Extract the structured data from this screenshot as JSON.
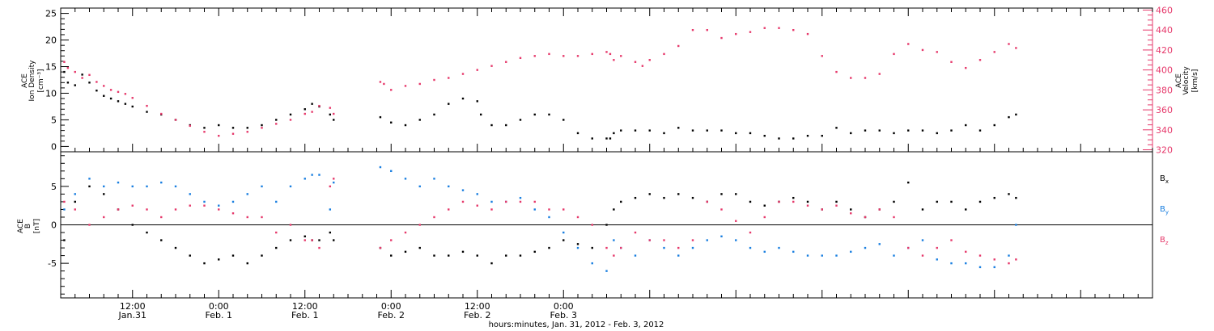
{
  "colors": {
    "black": "#000000",
    "pink": "#e6396b",
    "blue": "#1a7fe0"
  },
  "chart_data": [
    {
      "type": "scatter",
      "panel": "top",
      "ylabel_left": [
        "ACE",
        "Ion Density",
        "[cm⁻³]"
      ],
      "ylabel_right": [
        "ACE",
        "Velocity",
        "[km/s]"
      ],
      "ylim_left": [
        -1,
        26
      ],
      "yticks_left": [
        "25",
        "20",
        "15",
        "10",
        "5",
        "0"
      ],
      "ylim_right": [
        318,
        462
      ],
      "yticks_right": [
        "460",
        "440",
        "420",
        "400",
        "380",
        "360",
        "340",
        "320"
      ],
      "series": [
        {
          "key": "density",
          "color": "#000000",
          "axis": "left",
          "x": [
            -9.5,
            -9,
            -8,
            -7,
            -6,
            -5,
            -4,
            -3,
            -2,
            -1,
            0,
            2,
            4,
            6,
            8,
            10,
            12,
            14,
            16,
            18,
            20,
            22,
            24,
            25,
            26,
            27.5,
            28,
            34.5,
            36,
            38,
            40,
            42,
            44,
            46,
            48,
            48.5,
            50,
            52,
            54,
            56,
            58,
            60,
            62,
            64,
            66,
            66.5,
            67,
            68,
            70,
            72,
            74,
            76,
            78,
            80,
            82,
            84,
            86,
            88,
            90,
            92,
            94,
            96,
            98,
            100,
            102,
            104,
            106,
            108,
            110,
            112,
            114,
            116,
            118,
            120,
            122,
            123
          ],
          "y": [
            14,
            12,
            11.5,
            13.5,
            12,
            10.5,
            9.5,
            9,
            8.5,
            8,
            7.5,
            6.5,
            6,
            5,
            4,
            3.5,
            4,
            3.5,
            3.5,
            4,
            5,
            6,
            7,
            8,
            7.5,
            6,
            5,
            5.5,
            4.5,
            4,
            5,
            6,
            8,
            9,
            8.5,
            6,
            4,
            4,
            5,
            6,
            6,
            5,
            2.5,
            1.5,
            1.5,
            1.5,
            2.5,
            3,
            3,
            3,
            2.5,
            3.5,
            3,
            3,
            3,
            2.5,
            2.5,
            2,
            1.5,
            1.5,
            2,
            2,
            3.5,
            2.5,
            3,
            3,
            2.5,
            3,
            3,
            2.5,
            3,
            4,
            3,
            4,
            5.5,
            6
          ]
        },
        {
          "key": "velocity",
          "color": "#e6396b",
          "axis": "right",
          "x": [
            -9.5,
            -9,
            -8,
            -7,
            -6,
            -5,
            -4,
            -3,
            -2,
            -1,
            0,
            2,
            4,
            6,
            8,
            10,
            12,
            14,
            16,
            18,
            20,
            22,
            24,
            25,
            26,
            27.5,
            28,
            34.5,
            35,
            36,
            38,
            40,
            42,
            44,
            46,
            48,
            50,
            52,
            54,
            56,
            58,
            60,
            62,
            64,
            66,
            66.5,
            67,
            68,
            70,
            71,
            72,
            74,
            76,
            78,
            80,
            82,
            84,
            86,
            88,
            90,
            92,
            94,
            96,
            98,
            100,
            102,
            104,
            106,
            108,
            110,
            112,
            114,
            116,
            118,
            120,
            122,
            123
          ],
          "y": [
            408,
            402,
            398,
            392,
            395,
            388,
            384,
            380,
            378,
            376,
            372,
            364,
            356,
            350,
            344,
            338,
            334,
            336,
            338,
            342,
            346,
            350,
            356,
            358,
            364,
            362,
            356,
            388,
            386,
            380,
            384,
            386,
            390,
            392,
            396,
            400,
            404,
            408,
            412,
            414,
            416,
            414,
            414,
            416,
            418,
            416,
            410,
            414,
            408,
            404,
            410,
            416,
            424,
            440,
            440,
            432,
            436,
            438,
            442,
            442,
            440,
            436,
            414,
            398,
            392,
            392,
            396,
            416,
            426,
            420,
            418,
            408,
            402,
            410,
            418,
            426,
            422
          ]
        }
      ]
    },
    {
      "type": "scatter",
      "panel": "bottom",
      "ylabel_left": [
        "ACE",
        "B",
        "[nT]"
      ],
      "ylim": [
        -9.5,
        9.5
      ],
      "yticks_left": [
        "5",
        "0",
        "-5"
      ],
      "zero_line": true,
      "legend": [
        "Bx",
        "By",
        "Bz"
      ],
      "series": [
        {
          "key": "bx",
          "color": "#000000",
          "x": [
            -9.5,
            -8,
            -6,
            -4,
            -2,
            0,
            2,
            4,
            6,
            8,
            10,
            12,
            14,
            16,
            18,
            20,
            22,
            24,
            25,
            26,
            27.5,
            28,
            34.5,
            36,
            38,
            40,
            42,
            44,
            46,
            48,
            50,
            52,
            54,
            56,
            58,
            60,
            62,
            64,
            66,
            67,
            68,
            70,
            72,
            74,
            76,
            78,
            80,
            82,
            84,
            86,
            88,
            90,
            92,
            94,
            96,
            98,
            100,
            102,
            104,
            106,
            108,
            110,
            112,
            114,
            116,
            118,
            120,
            122,
            123
          ],
          "y": [
            -2,
            3,
            5,
            4,
            2,
            0,
            -1,
            -2,
            -3,
            -4,
            -5,
            -4.5,
            -4,
            -5,
            -4,
            -3,
            -2,
            -1.5,
            -2,
            -2,
            -1,
            -2,
            -3,
            -4,
            -3.5,
            -3,
            -4,
            -4,
            -3.5,
            -4,
            -5,
            -4,
            -4,
            -3.5,
            -3,
            -2,
            -2.5,
            -3,
            0,
            2,
            3,
            3.5,
            4,
            3.5,
            4,
            3.5,
            3,
            4,
            4,
            3,
            2.5,
            3,
            3.5,
            3,
            2,
            3,
            2,
            1,
            2,
            3,
            5.5,
            2,
            3,
            3,
            2,
            3,
            3.5,
            4,
            3.5
          ]
        },
        {
          "key": "by",
          "color": "#1a7fe0",
          "x": [
            -9.5,
            -8,
            -6,
            -4,
            -2,
            0,
            2,
            4,
            6,
            8,
            10,
            12,
            14,
            16,
            18,
            20,
            22,
            24,
            25,
            26,
            27.5,
            28,
            34.5,
            36,
            38,
            40,
            42,
            44,
            46,
            48,
            50,
            52,
            54,
            56,
            58,
            60,
            62,
            64,
            66,
            67,
            68,
            70,
            72,
            74,
            76,
            78,
            80,
            82,
            84,
            86,
            88,
            90,
            92,
            94,
            96,
            98,
            100,
            102,
            104,
            106,
            108,
            110,
            112,
            114,
            116,
            118,
            120,
            122,
            123
          ],
          "y": [
            2,
            4,
            6,
            5,
            5.5,
            5,
            5,
            5.5,
            5,
            4,
            3,
            2.5,
            3,
            4,
            5,
            3,
            5,
            6,
            6.5,
            6.5,
            2,
            5.5,
            7.5,
            7,
            6,
            5,
            6,
            5,
            4.5,
            4,
            3,
            3,
            3.5,
            2,
            1,
            -1,
            -3,
            -5,
            -6,
            -2,
            -3,
            -4,
            -2,
            -3,
            -4,
            -3,
            -2,
            -1.5,
            -2,
            -3,
            -3.5,
            -3,
            -3.5,
            -4,
            -4,
            -4,
            -3.5,
            -3,
            -2.5,
            -4,
            -3,
            -2,
            -4.5,
            -5,
            -5,
            -5.5,
            -5.5,
            -4,
            0
          ]
        },
        {
          "key": "bz",
          "color": "#e6396b",
          "x": [
            -9.5,
            -8,
            -6,
            -4,
            -2,
            0,
            2,
            4,
            6,
            8,
            10,
            12,
            14,
            16,
            18,
            20,
            22,
            24,
            25,
            26,
            27.5,
            28,
            34.5,
            36,
            38,
            40,
            42,
            44,
            46,
            48,
            50,
            52,
            54,
            56,
            58,
            60,
            62,
            64,
            66,
            67,
            68,
            70,
            72,
            74,
            76,
            78,
            80,
            82,
            84,
            86,
            88,
            90,
            92,
            94,
            96,
            98,
            100,
            102,
            104,
            106,
            108,
            110,
            112,
            114,
            116,
            118,
            120,
            122,
            123
          ],
          "y": [
            3,
            2,
            0,
            1,
            2,
            2.5,
            2,
            1,
            2,
            2.5,
            2.5,
            2,
            1.5,
            1,
            1,
            -1,
            0,
            -2,
            -2,
            -3,
            5,
            6,
            -3,
            -2,
            -1,
            0,
            1,
            2,
            3,
            2.5,
            2,
            3,
            3,
            3,
            2,
            2,
            1,
            0,
            -3,
            -4,
            -3,
            -1,
            -2,
            -2,
            -3,
            -2,
            3,
            2,
            0.5,
            -1,
            1,
            3,
            3,
            2.5,
            2,
            2.5,
            1.5,
            1,
            2,
            1,
            -3,
            -4,
            -3,
            -2,
            -3.5,
            -4,
            -4.5,
            -5,
            -4.5
          ]
        }
      ]
    }
  ],
  "x_axis": {
    "range_hours": [
      -10,
      142
    ],
    "major_ticks": [
      {
        "hour": 0,
        "time": "12:00",
        "date": "Jan.31"
      },
      {
        "hour": 12,
        "time": "0:00",
        "date": "Feb. 1"
      },
      {
        "hour": 24,
        "time": "12:00",
        "date": "Feb. 1"
      },
      {
        "hour": 36,
        "time": "0:00",
        "date": "Feb. 2"
      },
      {
        "hour": 48,
        "time": "12:00",
        "date": "Feb. 2"
      },
      {
        "hour": 60,
        "time": "0:00",
        "date": "Feb. 3"
      }
    ],
    "title": "hours:minutes, Jan. 31, 2012 - Feb. 3, 2012"
  },
  "legend": {
    "bx": {
      "base": "B",
      "sub": "x"
    },
    "by": {
      "base": "B",
      "sub": "y"
    },
    "bz": {
      "base": "B",
      "sub": "z"
    }
  }
}
